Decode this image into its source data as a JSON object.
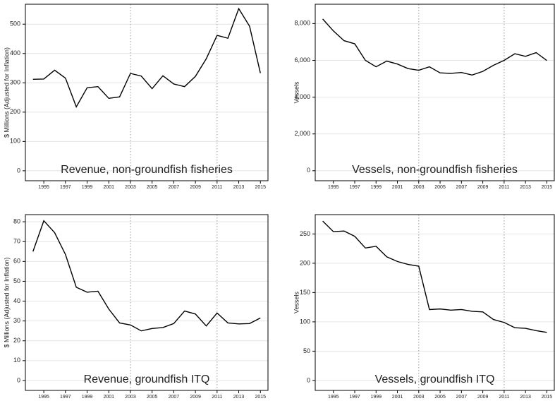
{
  "chart_data": [
    {
      "type": "line",
      "title": "Revenue, non-groundfish fisheries",
      "y_label": "$ Millions (Adjusted for Inflation)",
      "x": [
        1994,
        1995,
        1996,
        1997,
        1998,
        1999,
        2000,
        2001,
        2002,
        2003,
        2004,
        2005,
        2006,
        2007,
        2008,
        2009,
        2010,
        2011,
        2012,
        2013,
        2014,
        2015
      ],
      "values": [
        312,
        313,
        343,
        316,
        218,
        283,
        287,
        247,
        252,
        332,
        323,
        280,
        324,
        296,
        287,
        322,
        382,
        462,
        452,
        553,
        493,
        333
      ],
      "color": "#000000",
      "xlim": [
        1993.3,
        2015.7
      ],
      "xticks": [
        1995,
        1997,
        1999,
        2001,
        2003,
        2005,
        2007,
        2009,
        2011,
        2013,
        2015
      ],
      "ylim": [
        -34,
        568
      ],
      "yticks": [
        0,
        100,
        200,
        300,
        400,
        500
      ],
      "vlines": [
        2003,
        2011
      ],
      "grid": true
    },
    {
      "type": "line",
      "title": "Vessels, non-groundfish fisheries",
      "y_label": "Vessels",
      "x": [
        1994,
        1995,
        1996,
        1997,
        1998,
        1999,
        2000,
        2001,
        2002,
        2003,
        2004,
        2005,
        2006,
        2007,
        2008,
        2009,
        2010,
        2011,
        2012,
        2013,
        2014,
        2015
      ],
      "values": [
        8250,
        7600,
        7070,
        6900,
        6000,
        5650,
        5960,
        5800,
        5550,
        5460,
        5650,
        5320,
        5290,
        5340,
        5200,
        5400,
        5730,
        6000,
        6360,
        6220,
        6420,
        5990
      ],
      "color": "#000000",
      "xlim": [
        1993.3,
        2015.7
      ],
      "xticks": [
        1995,
        1997,
        1999,
        2001,
        2003,
        2005,
        2007,
        2009,
        2011,
        2013,
        2015
      ],
      "ylim": [
        -544,
        9050
      ],
      "yticks": [
        0,
        {
          "value": 2000,
          "label": "2,000"
        },
        {
          "value": 4000,
          "label": "4,000"
        },
        {
          "value": 6000,
          "label": "6,000"
        },
        {
          "value": 8000,
          "label": "8,000"
        }
      ],
      "vlines": [
        2003,
        2011
      ],
      "grid": true
    },
    {
      "type": "line",
      "title": "Revenue, groundfish ITQ",
      "y_label": "$ Millions (Adjusted for Inflation)",
      "x": [
        1994,
        1995,
        1996,
        1997,
        1998,
        1999,
        2000,
        2001,
        2002,
        2003,
        2004,
        2005,
        2006,
        2007,
        2008,
        2009,
        2010,
        2011,
        2012,
        2013,
        2014,
        2015
      ],
      "values": [
        65,
        80.5,
        74.5,
        63.5,
        47,
        44.5,
        45,
        36,
        29,
        28,
        25,
        26.2,
        26.7,
        28.7,
        35,
        33.5,
        27.5,
        34,
        29,
        28.5,
        28.7,
        31.5
      ],
      "color": "#000000",
      "xlim": [
        1993.3,
        2015.7
      ],
      "xticks": [
        1995,
        1997,
        1999,
        2001,
        2003,
        2005,
        2007,
        2009,
        2011,
        2013,
        2015
      ],
      "ylim": [
        -5,
        83.6
      ],
      "yticks": [
        0,
        10,
        20,
        30,
        40,
        50,
        60,
        70,
        80
      ],
      "vlines": [
        2003,
        2011
      ],
      "grid": true
    },
    {
      "type": "line",
      "title": "Vessels, groundfish ITQ",
      "y_label": "Vessels",
      "x": [
        1994,
        1995,
        1996,
        1997,
        1998,
        1999,
        2000,
        2001,
        2002,
        2003,
        2004,
        2005,
        2006,
        2007,
        2008,
        2009,
        2010,
        2011,
        2012,
        2013,
        2014,
        2015
      ],
      "values": [
        272,
        254,
        255,
        246,
        226,
        229,
        211,
        203,
        198,
        195,
        121,
        122,
        120,
        121,
        118,
        117,
        104,
        99,
        90,
        89,
        85,
        82
      ],
      "color": "#000000",
      "xlim": [
        1993.3,
        2015.7
      ],
      "xticks": [
        1995,
        1997,
        1999,
        2001,
        2003,
        2005,
        2007,
        2009,
        2011,
        2013,
        2015
      ],
      "ylim": [
        -17,
        283
      ],
      "yticks": [
        0,
        50,
        100,
        150,
        200,
        250
      ],
      "vlines": [
        2003,
        2011
      ],
      "grid": true
    }
  ]
}
